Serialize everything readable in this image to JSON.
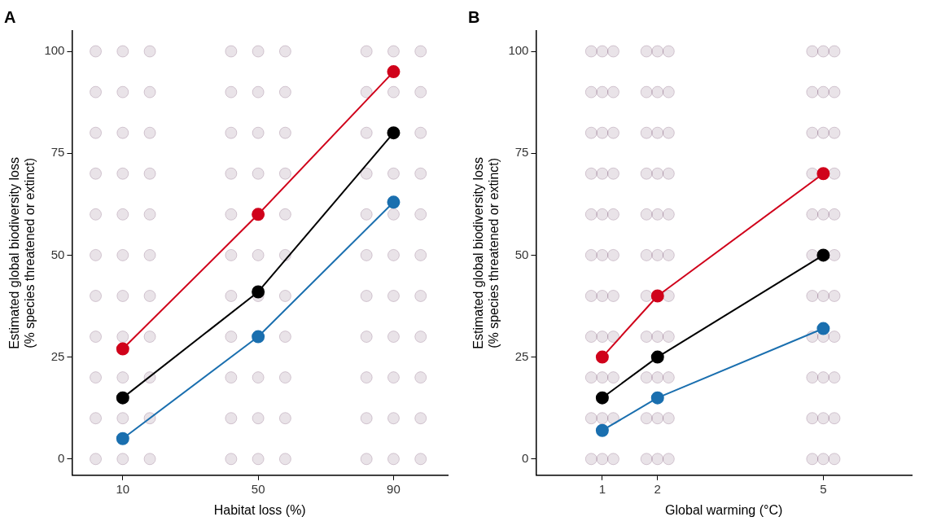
{
  "chart_data": [
    {
      "type": "line",
      "title": "A",
      "xlabel": "Habitat loss (%)",
      "ylabel": "Estimated global biodiversity loss\n(% species threatened or extinct)",
      "xlim": [
        -5,
        106
      ],
      "xticks": [
        10,
        50,
        90
      ],
      "ylim": [
        -4,
        105
      ],
      "yticks": [
        0,
        25,
        50,
        75,
        100
      ],
      "grid": false,
      "legend": false,
      "marker": "circle",
      "series": [
        {
          "type": "scatter",
          "color": "#5a2a50",
          "x": [
            2,
            2,
            2,
            2,
            2,
            2,
            2,
            2,
            2,
            2,
            2,
            10,
            10,
            10,
            10,
            10,
            10,
            10,
            10,
            10,
            10,
            10,
            18,
            18,
            18,
            18,
            18,
            18,
            18,
            18,
            18,
            18,
            18,
            42,
            42,
            42,
            42,
            42,
            42,
            42,
            42,
            42,
            42,
            42,
            50,
            50,
            50,
            50,
            50,
            50,
            50,
            50,
            50,
            58,
            58,
            58,
            58,
            58,
            58,
            58,
            58,
            58,
            58,
            58,
            82,
            82,
            82,
            82,
            82,
            82,
            82,
            82,
            82,
            82,
            82,
            90,
            90,
            90,
            90,
            90,
            90,
            90,
            90,
            90,
            90,
            98,
            98,
            98,
            98,
            98,
            98,
            98,
            98,
            98,
            98,
            98
          ],
          "values": [
            0,
            10,
            20,
            30,
            40,
            50,
            60,
            70,
            80,
            90,
            100,
            0,
            10,
            20,
            30,
            40,
            50,
            60,
            70,
            80,
            90,
            100,
            0,
            10,
            20,
            30,
            40,
            50,
            60,
            70,
            80,
            90,
            100,
            0,
            10,
            20,
            30,
            40,
            50,
            60,
            70,
            80,
            90,
            100,
            0,
            10,
            20,
            40,
            50,
            70,
            80,
            90,
            100,
            0,
            10,
            20,
            30,
            40,
            50,
            60,
            70,
            80,
            90,
            100,
            0,
            10,
            20,
            30,
            40,
            50,
            60,
            70,
            80,
            90,
            100,
            0,
            10,
            20,
            30,
            40,
            50,
            60,
            70,
            90,
            100,
            0,
            10,
            20,
            30,
            40,
            50,
            60,
            70,
            80,
            90,
            100
          ]
        },
        {
          "type": "line",
          "color": "#d0021b",
          "x": [
            10,
            50,
            90
          ],
          "values": [
            27,
            60,
            95
          ]
        },
        {
          "type": "line",
          "color": "#000000",
          "x": [
            10,
            50,
            90
          ],
          "values": [
            15,
            41,
            80
          ]
        },
        {
          "type": "line",
          "color": "#1a6faf",
          "x": [
            10,
            50,
            90
          ],
          "values": [
            5,
            30,
            63
          ]
        }
      ]
    },
    {
      "type": "line",
      "title": "B",
      "xlabel": "Global warming (°C)",
      "ylabel": "Estimated global biodiversity loss\n(% species threatened or extinct)",
      "xlim": [
        -0.2,
        6.6
      ],
      "xticks": [
        1,
        2,
        5
      ],
      "ylim": [
        -4,
        105
      ],
      "yticks": [
        0,
        25,
        50,
        75,
        100
      ],
      "grid": false,
      "legend": false,
      "marker": "circle",
      "series": [
        {
          "type": "scatter",
          "color": "#5a2a50",
          "x": [
            0.8,
            0.8,
            0.8,
            0.8,
            0.8,
            0.8,
            0.8,
            0.8,
            0.8,
            0.8,
            0.8,
            1,
            1,
            1,
            1,
            1,
            1,
            1,
            1,
            1,
            1,
            1,
            1.2,
            1.2,
            1.2,
            1.2,
            1.2,
            1.2,
            1.2,
            1.2,
            1.2,
            1.2,
            1.2,
            1.8,
            1.8,
            1.8,
            1.8,
            1.8,
            1.8,
            1.8,
            1.8,
            1.8,
            1.8,
            1.8,
            2,
            2,
            2,
            2,
            2,
            2,
            2,
            2,
            2,
            2,
            2.2,
            2.2,
            2.2,
            2.2,
            2.2,
            2.2,
            2.2,
            2.2,
            2.2,
            2.2,
            2.2,
            4.8,
            4.8,
            4.8,
            4.8,
            4.8,
            4.8,
            4.8,
            4.8,
            4.8,
            4.8,
            4.8,
            5,
            5,
            5,
            5,
            5,
            5,
            5,
            5,
            5,
            5.2,
            5.2,
            5.2,
            5.2,
            5.2,
            5.2,
            5.2,
            5.2,
            5.2,
            5.2,
            5.2
          ],
          "values": [
            0,
            10,
            20,
            30,
            40,
            50,
            60,
            70,
            80,
            90,
            100,
            0,
            10,
            20,
            30,
            40,
            50,
            60,
            70,
            80,
            90,
            100,
            0,
            10,
            20,
            30,
            40,
            50,
            60,
            70,
            80,
            90,
            100,
            0,
            10,
            20,
            30,
            40,
            50,
            60,
            70,
            80,
            90,
            100,
            0,
            10,
            20,
            30,
            50,
            60,
            70,
            80,
            90,
            100,
            0,
            10,
            20,
            30,
            40,
            50,
            60,
            70,
            80,
            90,
            100,
            0,
            10,
            20,
            30,
            40,
            50,
            60,
            70,
            80,
            90,
            100,
            0,
            10,
            20,
            30,
            40,
            60,
            80,
            90,
            100,
            0,
            10,
            20,
            30,
            40,
            50,
            60,
            70,
            80,
            90,
            100
          ]
        },
        {
          "type": "line",
          "color": "#d0021b",
          "x": [
            1,
            2,
            5
          ],
          "values": [
            25,
            40,
            70
          ]
        },
        {
          "type": "line",
          "color": "#000000",
          "x": [
            1,
            2,
            5
          ],
          "values": [
            15,
            25,
            50
          ]
        },
        {
          "type": "line",
          "color": "#1a6faf",
          "x": [
            1,
            2,
            5
          ],
          "values": [
            7,
            15,
            32
          ]
        }
      ]
    }
  ]
}
